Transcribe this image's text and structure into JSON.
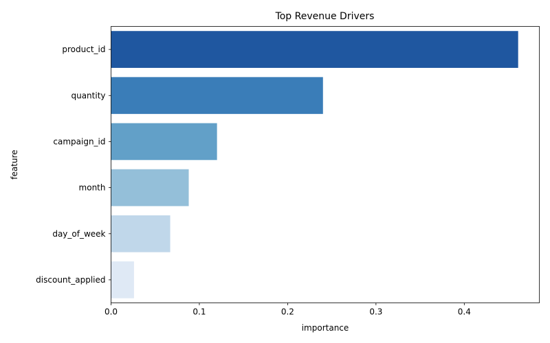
{
  "chart_data": {
    "type": "bar",
    "orientation": "horizontal",
    "title": "Top Revenue Drivers",
    "xlabel": "importance",
    "ylabel": "feature",
    "categories": [
      "product_id",
      "quantity",
      "campaign_id",
      "month",
      "day_of_week",
      "discount_applied"
    ],
    "values": [
      0.461,
      0.24,
      0.12,
      0.088,
      0.067,
      0.026
    ],
    "xlim": [
      0,
      0.485
    ],
    "xticks": [
      0.0,
      0.1,
      0.2,
      0.3,
      0.4
    ],
    "xtick_labels": [
      "0.0",
      "0.1",
      "0.2",
      "0.3",
      "0.4"
    ],
    "colors": [
      "#1f57a0",
      "#3a7db8",
      "#62a0c8",
      "#94bfd9",
      "#c0d7ea",
      "#dfe9f5"
    ],
    "grid": false,
    "legend": false
  }
}
